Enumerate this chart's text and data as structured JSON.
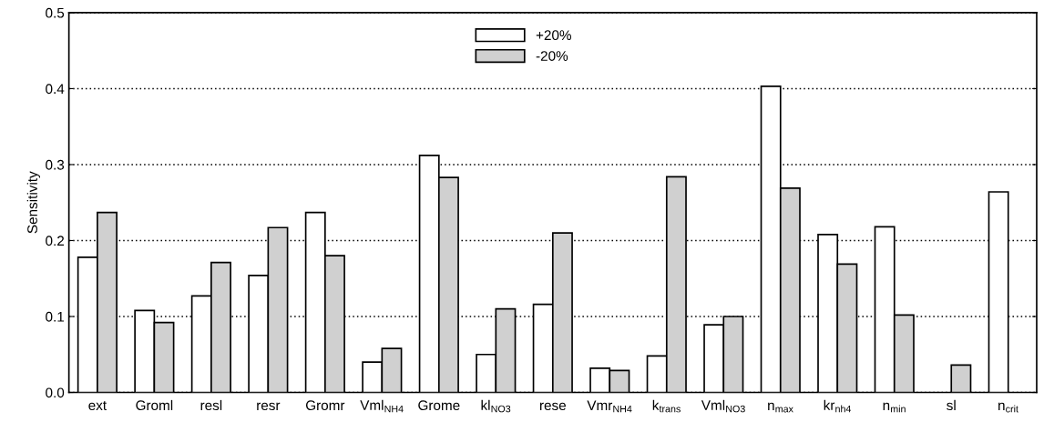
{
  "chart_data": {
    "type": "bar",
    "ylabel": "Sensitivity",
    "categories": [
      "ext",
      "Groml",
      "resl",
      "resr",
      "Gromr",
      "Vml$_{NH4}$",
      "Grome",
      "kl$_{NO3}$",
      "rese",
      "Vmr$_{NH4}$",
      "k$_{trans}$",
      "Vml$_{NO3}$",
      "n$_{max}$",
      "kr$_{nh4}$",
      "n$_{min}$",
      "sl",
      "n$_{crit}$"
    ],
    "series": [
      {
        "name": "+20%",
        "color": "#ffffff",
        "values": [
          0.178,
          0.108,
          0.127,
          0.154,
          0.237,
          0.04,
          0.312,
          0.05,
          0.116,
          0.032,
          0.048,
          0.089,
          0.403,
          0.208,
          0.218,
          null,
          0.264
        ]
      },
      {
        "name": "-20%",
        "color": "#d0d0d0",
        "values": [
          0.237,
          0.092,
          0.171,
          0.217,
          0.18,
          0.058,
          0.283,
          0.11,
          0.21,
          0.029,
          0.284,
          0.1,
          0.269,
          0.169,
          0.102,
          0.036,
          null
        ]
      }
    ],
    "ylim": [
      0.0,
      0.5
    ],
    "yticks": [
      {
        "value": 0,
        "label": "0.0"
      },
      0.1,
      0.2,
      0.3,
      0.4,
      0.5
    ],
    "grid": "y",
    "legend": "top"
  }
}
